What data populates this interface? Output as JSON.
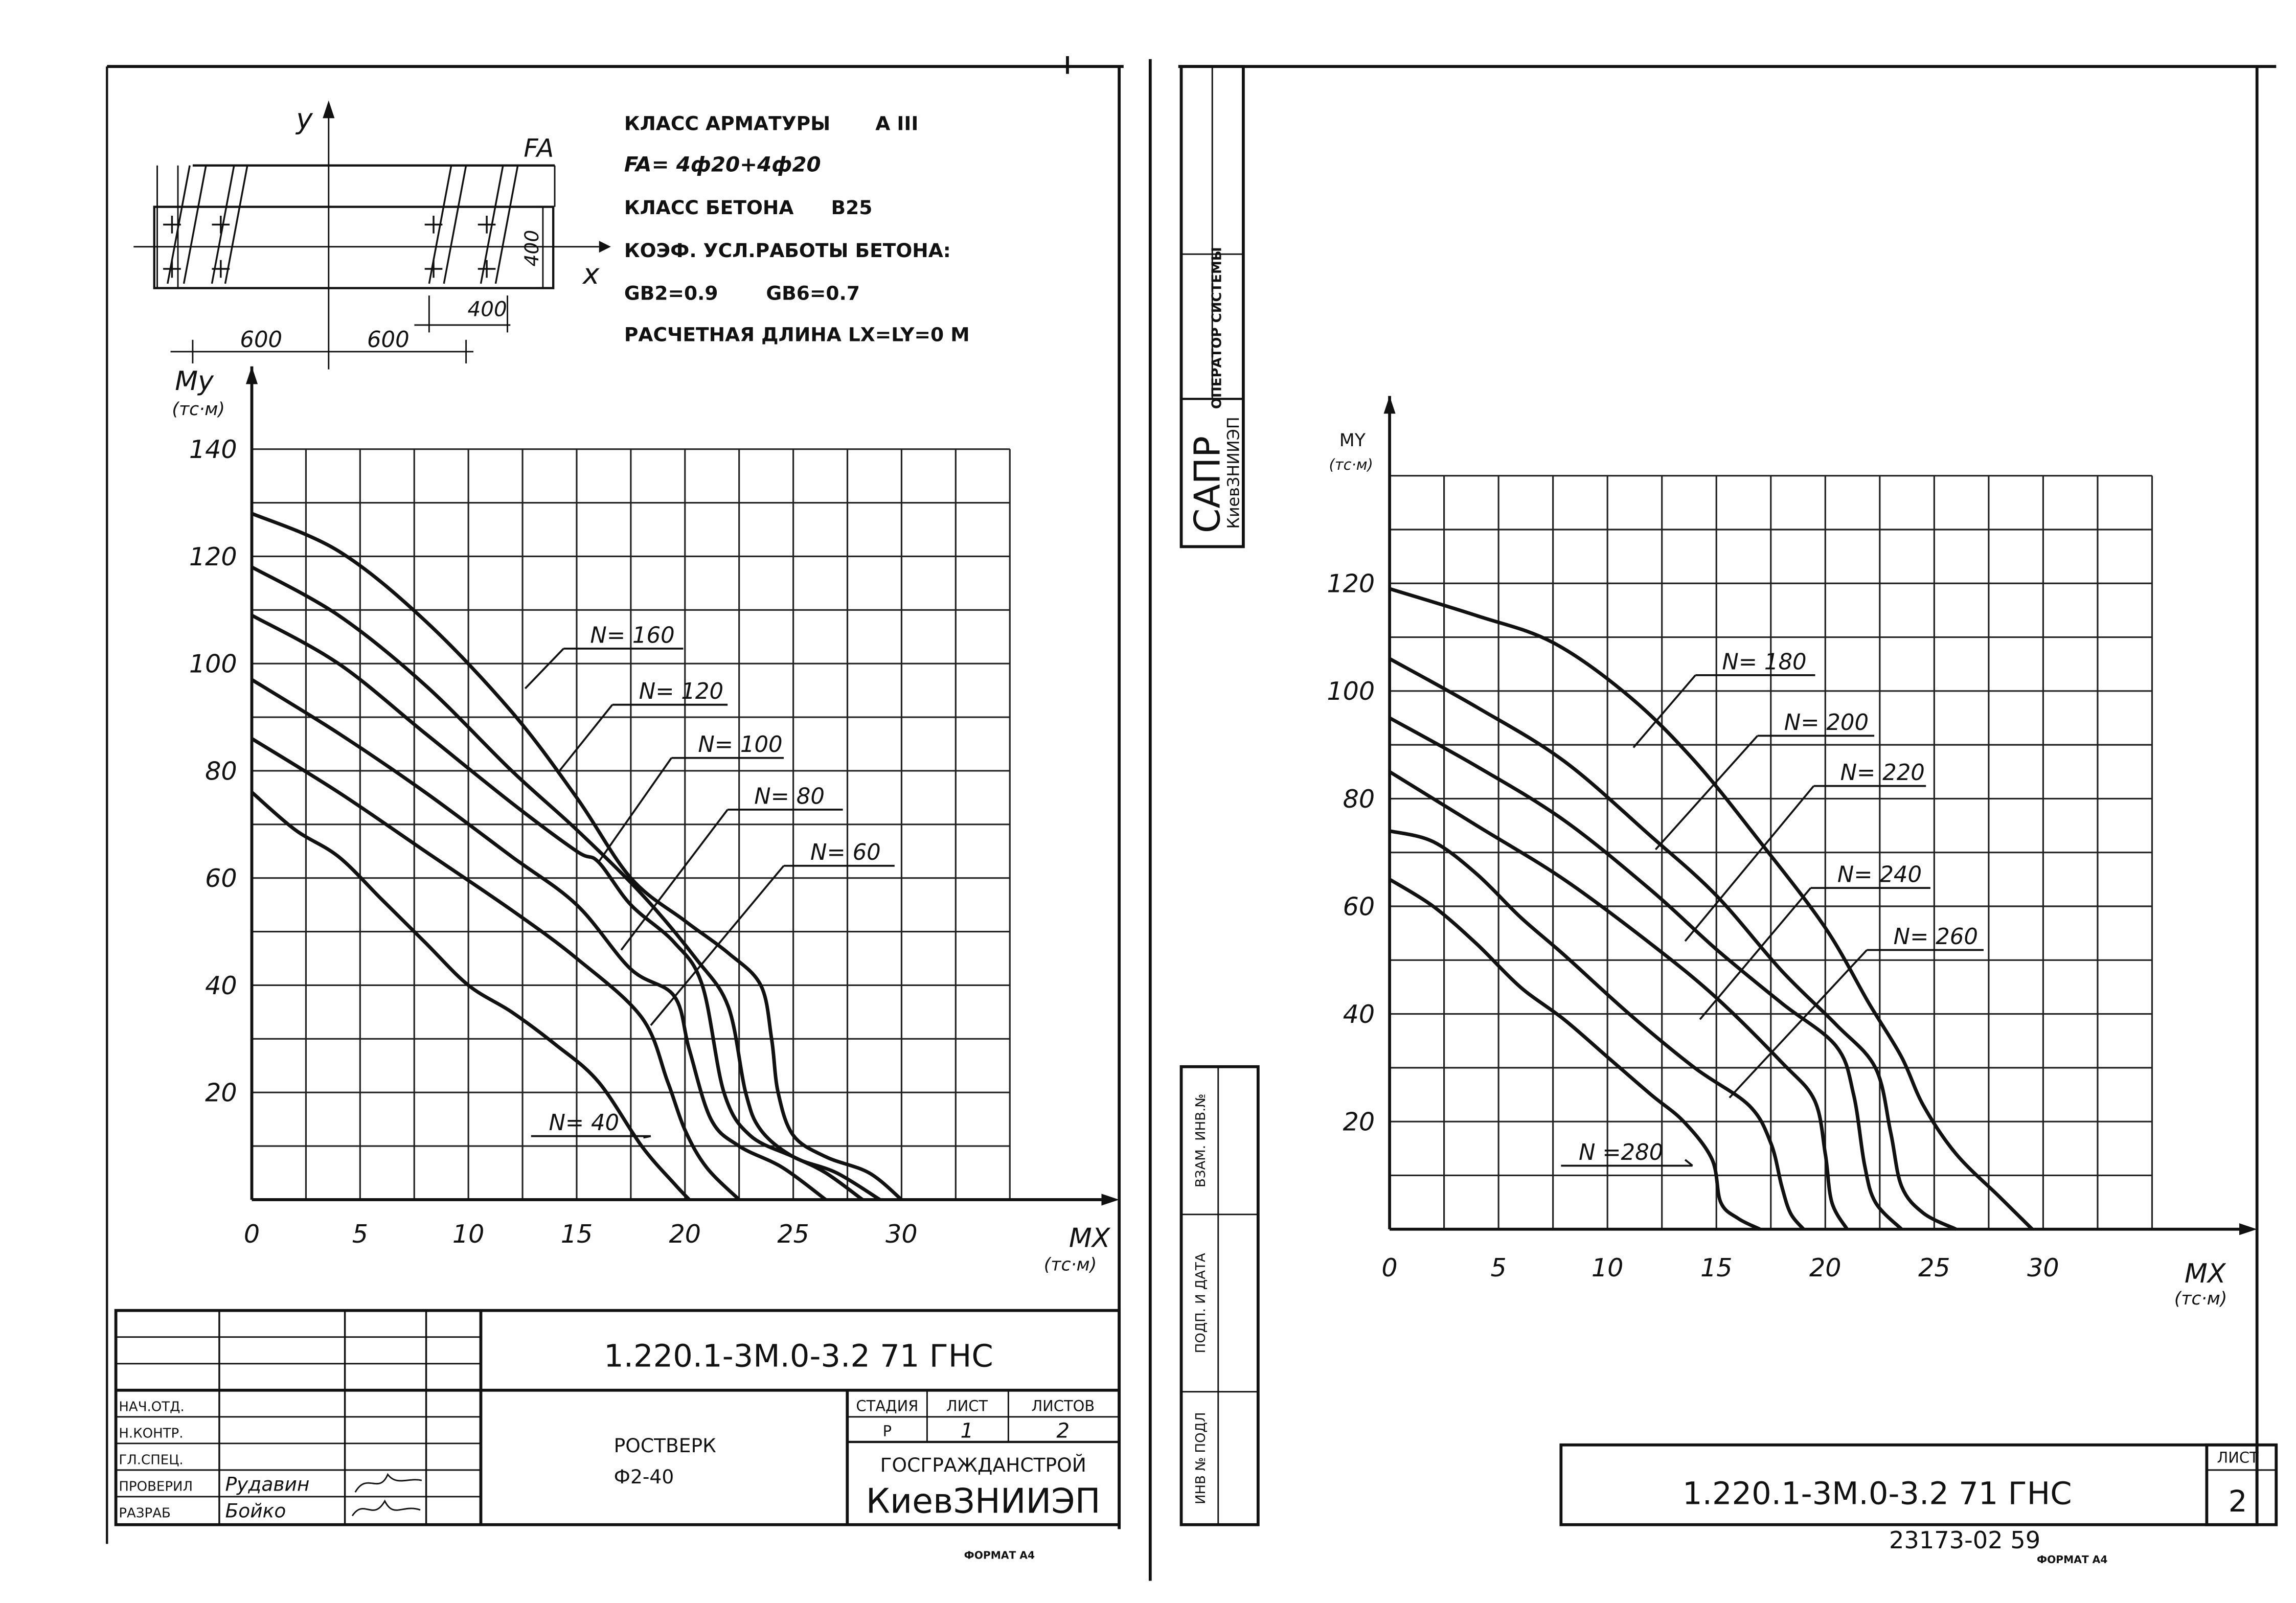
{
  "left_sheet": {
    "section": {
      "y_axis": "y",
      "x_axis": "x",
      "fa_label": "FA",
      "dim_400_v": "400",
      "dim_400_h": "400",
      "dim_600_a": "600",
      "dim_600_b": "600"
    },
    "specs": {
      "line1_label": "КЛАСС АРМАТУРЫ",
      "line1_value": "A III",
      "line2": "FA= 4ф20+4ф20",
      "line3_label": "КЛАСС БЕТОНА",
      "line3_value": "B25",
      "line4": "КОЭФ. УСЛ.РАБОТЫ БЕТОНА:",
      "line5_a": "GB2=0.9",
      "line5_b": "GB6=0.7",
      "line6": "РАСЧЕТНАЯ ДЛИНА LX=LY=0 M"
    },
    "title_block": {
      "code": "1.220.1-3М.0-3.2 71 ГНС",
      "roles": [
        "НАЧ.ОТД.",
        "Н.КОНТР.",
        "ГЛ.СПЕЦ.",
        "ПРОВЕРИЛ",
        "РАЗРАБ"
      ],
      "names": [
        "",
        "",
        "",
        "Рудавин",
        "Бойко"
      ],
      "stage_header": "СТАДИЯ",
      "sheet_header": "ЛИСТ",
      "sheets_header": "ЛИСТОВ",
      "stage": "Р",
      "sheet": "1",
      "sheets": "2",
      "name_line1": "РОСТВЕРК",
      "name_line2": "Ф2-40",
      "org_line1": "ГОСГРАЖДАНСТРОЙ",
      "org_line2": "КиевЗНИИЭП"
    },
    "format": "ФОРМАТ А4"
  },
  "right_sheet": {
    "side_stamp": {
      "operator": "ОПЕРАТОР СИСТЕМЫ",
      "sapr": "САПР",
      "org": "КиевЗНИИЭП",
      "vzam": "ВЗАМ. ИНВ.№",
      "podp": "ПОДП. И ДАТА",
      "inv": "ИНВ № ПОДЛ"
    },
    "title_block": {
      "code": "1.220.1-3М.0-3.2 71 ГНС",
      "sheet_header": "ЛИСТ",
      "sheet": "2"
    },
    "doc_number": "23173-02 59",
    "format": "ФОРМАТ А4"
  },
  "chart_data": [
    {
      "type": "line",
      "xlabel": "MX",
      "xunit": "(тс·м)",
      "ylabel": "My",
      "yunit": "(тс·м)",
      "xlim": [
        0,
        35
      ],
      "ylim": [
        0,
        140
      ],
      "xticks": [
        "0",
        "5",
        "10",
        "15",
        "20",
        "25",
        "30"
      ],
      "yticks": [
        "20",
        "40",
        "60",
        "80",
        "100",
        "120",
        "140"
      ],
      "grid": true,
      "series": [
        {
          "name": "N= 160",
          "x": [
            0,
            4,
            8,
            12,
            15,
            17.5,
            20,
            22,
            23.5,
            24,
            24.3,
            25,
            26.5,
            28.5,
            30
          ],
          "y": [
            128,
            121,
            108,
            91,
            75,
            60,
            52,
            46,
            40,
            30,
            20,
            12,
            8,
            5,
            0
          ]
        },
        {
          "name": "N= 120",
          "x": [
            0,
            4,
            8,
            12,
            15,
            18,
            20.5,
            22,
            22.8,
            23.5,
            25,
            27,
            29
          ],
          "y": [
            118,
            109,
            96,
            80,
            69,
            57,
            45,
            36,
            20,
            13,
            8,
            5,
            0
          ]
        },
        {
          "name": "N= 100",
          "x": [
            0,
            4,
            8,
            12,
            15,
            16,
            17.5,
            19.5,
            20.8,
            21.8,
            23,
            25,
            26.5,
            28.2
          ],
          "y": [
            109,
            100,
            87,
            74,
            65,
            63,
            55,
            48,
            40,
            20,
            12,
            8,
            5,
            0
          ]
        },
        {
          "name": "N= 80",
          "x": [
            0,
            4,
            8,
            12,
            15,
            17.5,
            19.5,
            20.2,
            21.2,
            22.5,
            24.5,
            26.5
          ],
          "y": [
            97,
            87,
            76,
            64,
            55,
            43,
            38,
            28,
            15,
            10,
            6,
            0
          ]
        },
        {
          "name": "N= 60",
          "x": [
            0,
            4,
            8,
            12,
            15,
            18,
            19.2,
            20,
            21,
            22.5
          ],
          "y": [
            86,
            76,
            65,
            54,
            45,
            34,
            22,
            13,
            6,
            0
          ]
        },
        {
          "name": "N= 40",
          "x": [
            0,
            2,
            4,
            6,
            8,
            10,
            12,
            14,
            16,
            18,
            19.5,
            20.2
          ],
          "y": [
            76,
            69,
            64,
            56,
            48,
            40,
            35,
            29,
            22,
            10,
            3,
            0
          ]
        }
      ]
    },
    {
      "type": "line",
      "xlabel": "MX",
      "xunit": "(тс·м)",
      "ylabel": "MY",
      "yunit": "(тс·м)",
      "xlim": [
        0,
        35
      ],
      "ylim": [
        0,
        140
      ],
      "xticks": [
        "0",
        "5",
        "10",
        "15",
        "20",
        "25",
        "30"
      ],
      "yticks": [
        "20",
        "40",
        "60",
        "80",
        "100",
        "120"
      ],
      "grid": true,
      "series": [
        {
          "name": "N= 180",
          "x": [
            0,
            4,
            7.5,
            11,
            14,
            17,
            20,
            22,
            23.5,
            24.5,
            26,
            28,
            29.5
          ],
          "y": [
            119,
            114,
            109,
            99,
            87,
            72,
            56,
            42,
            32,
            23,
            14,
            6,
            0
          ]
        },
        {
          "name": "N= 200",
          "x": [
            0,
            4,
            8,
            12,
            15,
            18,
            20.5,
            22.3,
            23,
            23.5,
            24.5,
            26
          ],
          "y": [
            106,
            97,
            87,
            73,
            62,
            48,
            38,
            30,
            18,
            8,
            3,
            0
          ]
        },
        {
          "name": "N= 220",
          "x": [
            0,
            4,
            8,
            12,
            15,
            18,
            20.5,
            21.3,
            21.8,
            22.3,
            23.5
          ],
          "y": [
            95,
            86,
            76,
            63,
            52,
            42,
            34,
            25,
            12,
            5,
            0
          ]
        },
        {
          "name": "N= 240",
          "x": [
            0,
            4,
            8,
            12,
            15,
            18,
            19.5,
            20,
            20.3,
            21
          ],
          "y": [
            85,
            75,
            65,
            53,
            43,
            31,
            24,
            14,
            5,
            0
          ]
        },
        {
          "name": "N= 260",
          "x": [
            0,
            2,
            4,
            6,
            8,
            11,
            14,
            16.5,
            17.5,
            18,
            18.4,
            19
          ],
          "y": [
            74,
            72,
            66,
            58,
            51,
            40,
            30,
            23,
            16,
            8,
            3,
            0
          ]
        },
        {
          "name": "N =280",
          "x": [
            0,
            2,
            4,
            6,
            8,
            10,
            12,
            13.5,
            14.8,
            15.2,
            16,
            17
          ],
          "y": [
            65,
            60,
            53,
            45,
            39,
            32,
            25,
            20,
            13,
            5,
            2,
            0
          ]
        }
      ]
    }
  ]
}
